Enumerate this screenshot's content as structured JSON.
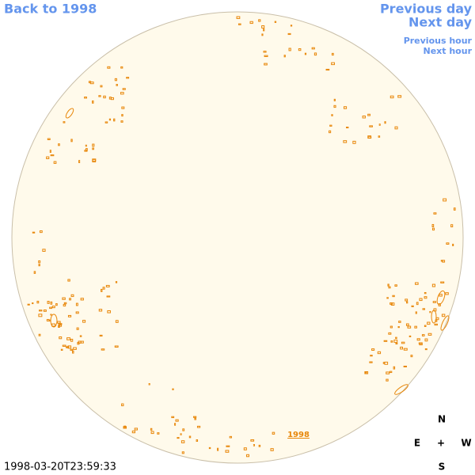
{
  "nav": {
    "back": "Back to 1998",
    "previous_day": "Previous day",
    "next_day": "Next day",
    "previous_hour": "Previous hour",
    "next_hour": "Next hour"
  },
  "timestamp": "1998-03-20T23:59:33",
  "year_link": "1998",
  "compass": {
    "north": "N",
    "east": "E",
    "center": "+",
    "west": "W",
    "south": "S"
  }
}
